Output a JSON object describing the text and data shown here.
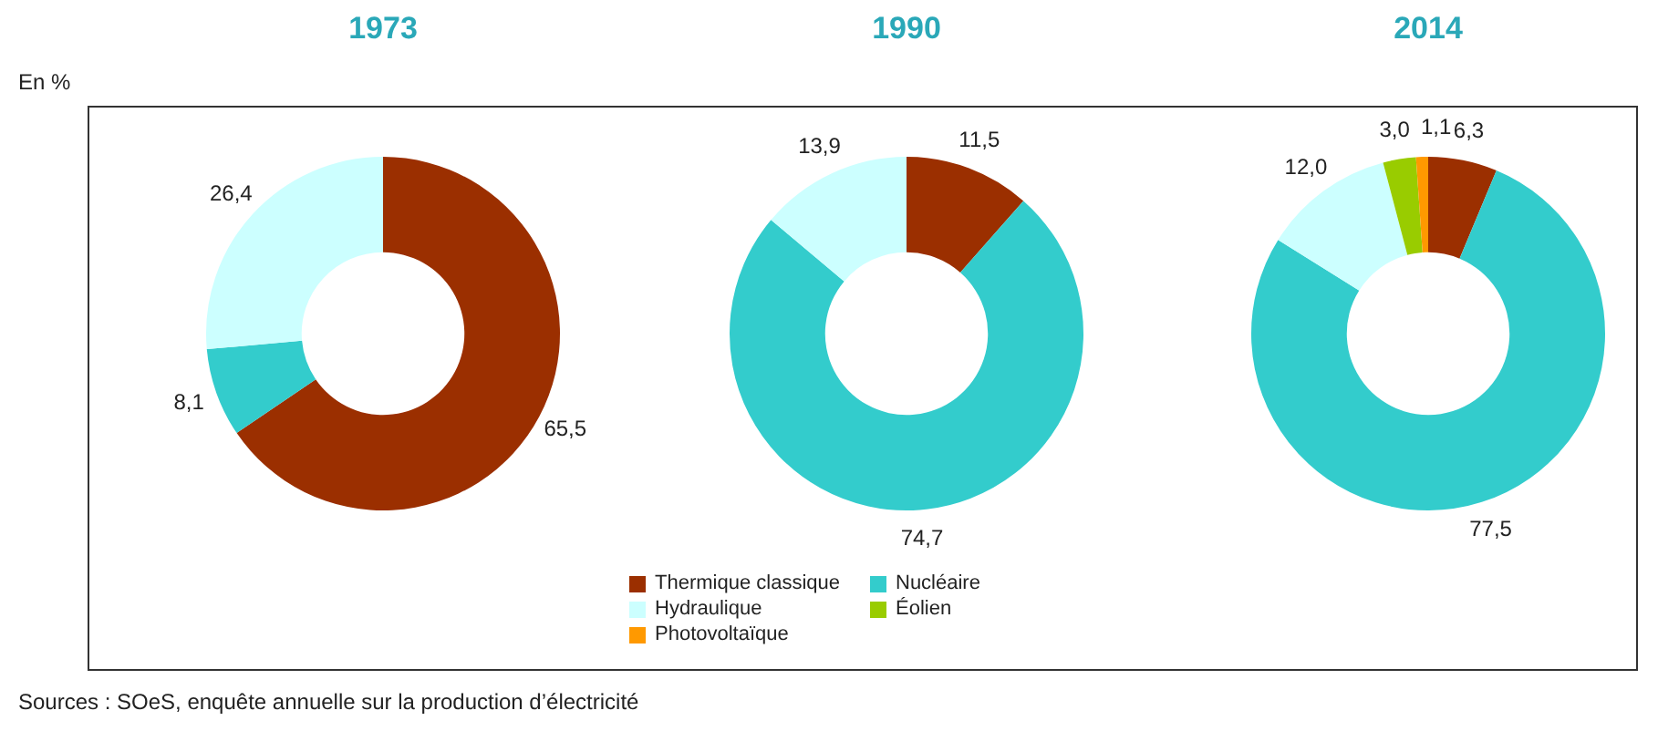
{
  "chart_data": [
    {
      "type": "donut",
      "title": "1973",
      "categories": [
        null,
        null,
        null
      ],
      "values": [
        65.5,
        8.1,
        26.4
      ],
      "value_labels": [
        "65,5",
        "8,1",
        "26,4"
      ],
      "colors": [
        "#9b2f00",
        "#33cccc",
        "#ccffff"
      ],
      "annotations": [
        "En %",
        "Sources : SOeS, enquête annuelle sur la production d’électricité"
      ]
    },
    {
      "type": "donut",
      "title": "1990",
      "categories": [
        null,
        null,
        null
      ],
      "values": [
        11.5,
        74.7,
        13.9
      ],
      "value_labels": [
        "11,5",
        "74,7",
        "13,9"
      ],
      "colors": [
        "#9b2f00",
        "#33cccc",
        "#ccffff"
      ]
    },
    {
      "type": "donut",
      "title": "2014",
      "categories": [
        "Thermique classique",
        "Nucléaire",
        "Hydraulique",
        "Éolien",
        "Photovoltaïque"
      ],
      "values": [
        6.3,
        77.5,
        12.0,
        3.0,
        1.1
      ],
      "value_labels": [
        "6,3",
        "77,5",
        "12,0",
        "3,0",
        "1,1"
      ],
      "colors": [
        "#9b2f00",
        "#33cccc",
        "#ccffff",
        "#99cc00",
        "#ff9900"
      ],
      "legend": "bottom"
    }
  ]
}
